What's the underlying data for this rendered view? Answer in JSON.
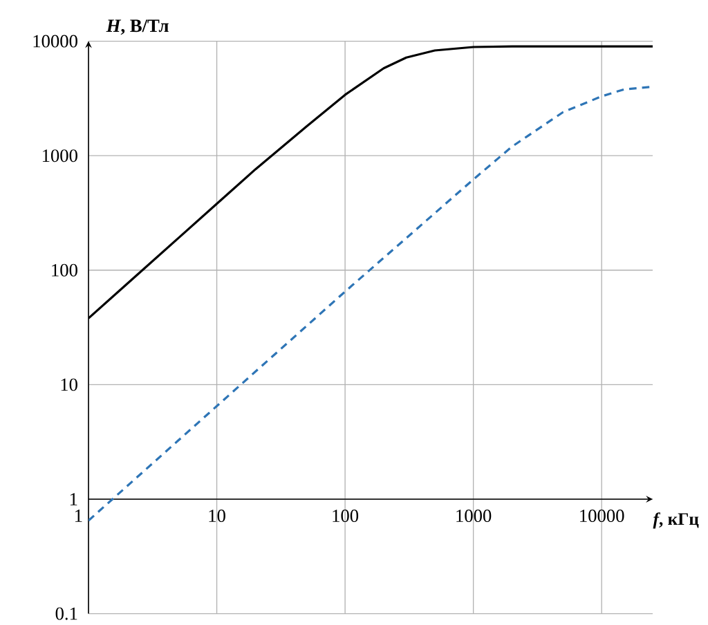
{
  "chart_data": {
    "type": "line",
    "xlabel": "*f*, кГц",
    "ylabel": "*H*, В/Тл",
    "log": "xy",
    "grid": true,
    "xlim": [
      1,
      25000
    ],
    "ylim": [
      0.1,
      10000
    ],
    "xticks": [
      1,
      10,
      100,
      1000,
      10000
    ],
    "yticks": [
      0.1,
      1,
      10,
      100,
      1000,
      10000
    ],
    "series": [
      {
        "color": "#000000",
        "line_style": "solid",
        "x": [
          1,
          2,
          5,
          10,
          20,
          50,
          100,
          200,
          300,
          500,
          1000,
          2000,
          5000,
          10000,
          25000
        ],
        "values": [
          38,
          76,
          190,
          380,
          760,
          1800,
          3400,
          5800,
          7200,
          8300,
          8900,
          9000,
          9000,
          9000,
          9000
        ]
      },
      {
        "color": "#2e75b6",
        "line_style": "dashed",
        "x": [
          1,
          10,
          100,
          1000,
          2000,
          5000,
          10000,
          15000,
          25000
        ],
        "values": [
          0.65,
          6.5,
          65,
          620,
          1200,
          2400,
          3300,
          3800,
          4000
        ]
      }
    ]
  }
}
